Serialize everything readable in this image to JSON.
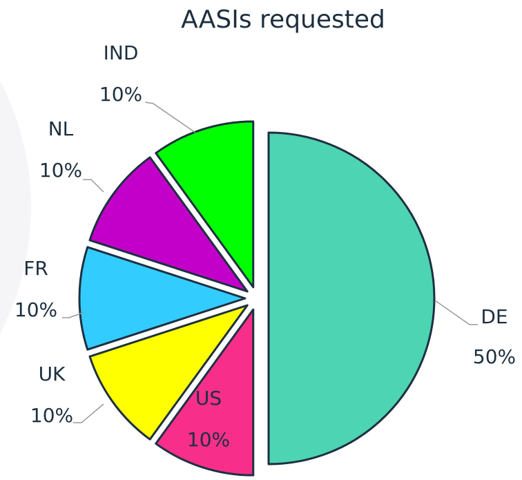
{
  "chart_data": {
    "type": "pie",
    "title": "AASIs requested",
    "categories": [
      "DE",
      "US",
      "UK",
      "FR",
      "NL",
      "IND"
    ],
    "values": [
      50,
      10,
      10,
      10,
      10,
      10
    ],
    "value_labels": [
      "50%",
      "10%",
      "10%",
      "10%",
      "10%",
      "10%"
    ],
    "colors": [
      "#4dd4b2",
      "#f72f8b",
      "#ffff00",
      "#33ccff",
      "#c300c9",
      "#00ff00"
    ]
  }
}
